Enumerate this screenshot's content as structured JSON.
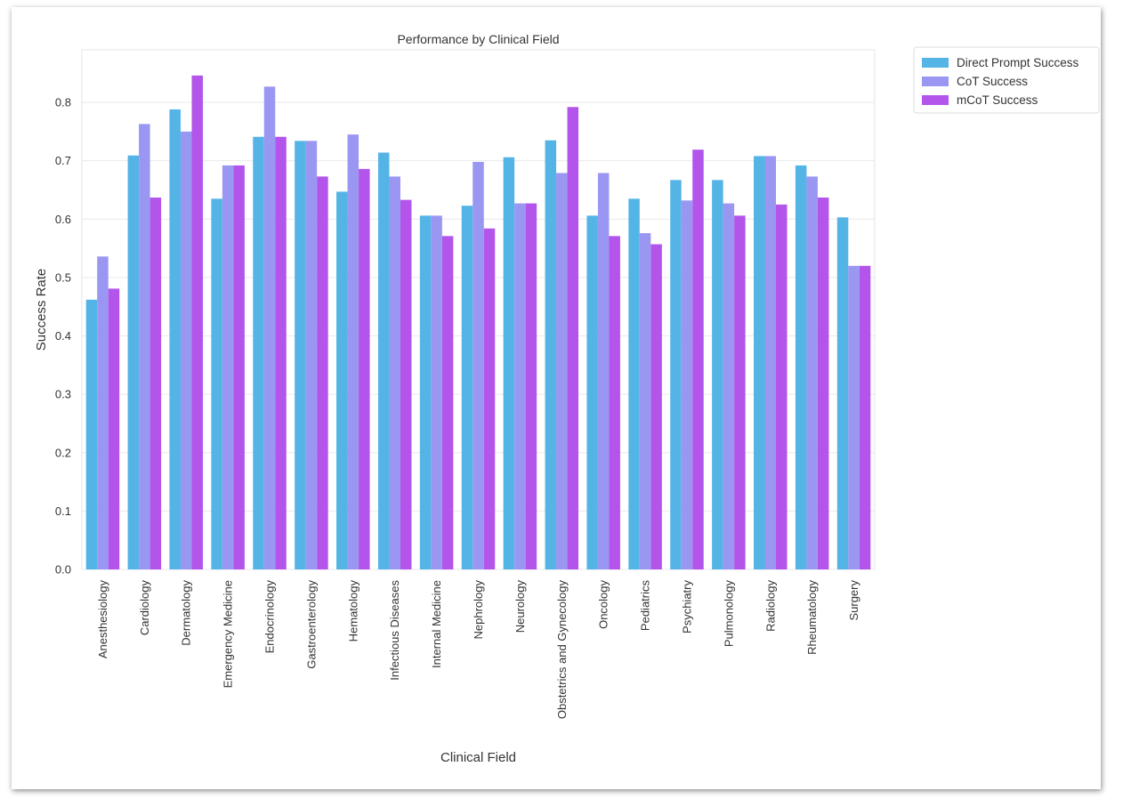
{
  "chart_data": {
    "type": "bar",
    "title": "Performance by Clinical Field",
    "xlabel": "Clinical Field",
    "ylabel": "Success Rate",
    "ylim": [
      0,
      0.89
    ],
    "yticks": [
      "0.0",
      "0.1",
      "0.2",
      "0.3",
      "0.4",
      "0.5",
      "0.6",
      "0.7",
      "0.8"
    ],
    "grid": true,
    "legend_position": "outside-top-right",
    "categories": [
      "Anesthesiology",
      "Cardiology",
      "Dermatology",
      "Emergency Medicine",
      "Endocrinology",
      "Gastroenterology",
      "Hematology",
      "Infectious Diseases",
      "Internal Medicine",
      "Nephrology",
      "Neurology",
      "Obstetrics and Gynecology",
      "Oncology",
      "Pediatrics",
      "Psychiatry",
      "Pulmonology",
      "Radiology",
      "Rheumatology",
      "Surgery"
    ],
    "series": [
      {
        "name": "Direct Prompt Success",
        "color": "#55b4e6",
        "values": [
          0.462,
          0.709,
          0.788,
          0.635,
          0.741,
          0.734,
          0.647,
          0.714,
          0.606,
          0.623,
          0.706,
          0.735,
          0.606,
          0.635,
          0.667,
          0.667,
          0.708,
          0.692,
          0.603
        ]
      },
      {
        "name": "CoT Success",
        "color": "#9a97f2",
        "values": [
          0.536,
          0.763,
          0.75,
          0.692,
          0.827,
          0.734,
          0.745,
          0.673,
          0.606,
          0.698,
          0.627,
          0.679,
          0.679,
          0.576,
          0.632,
          0.627,
          0.708,
          0.673,
          0.52
        ]
      },
      {
        "name": "mCoT Success",
        "color": "#b355ea",
        "values": [
          0.481,
          0.637,
          0.846,
          0.692,
          0.741,
          0.673,
          0.686,
          0.633,
          0.571,
          0.584,
          0.627,
          0.792,
          0.571,
          0.557,
          0.719,
          0.606,
          0.625,
          0.637,
          0.52
        ]
      }
    ]
  }
}
